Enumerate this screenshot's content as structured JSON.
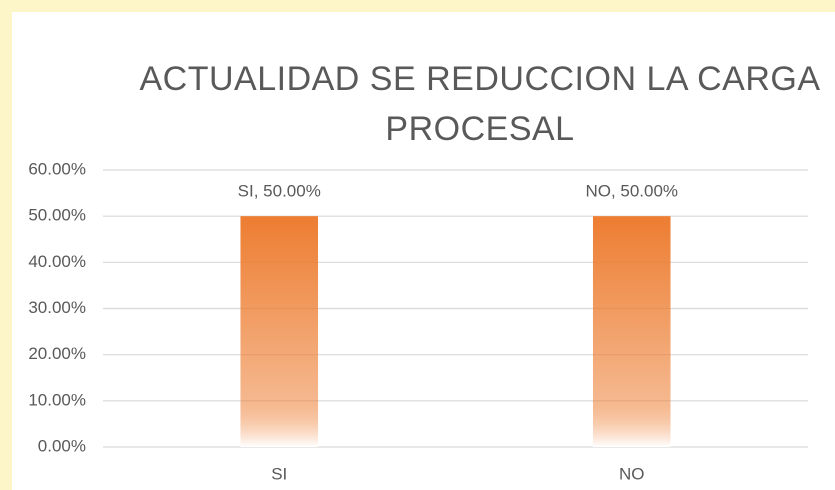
{
  "chart_data": {
    "type": "bar",
    "title": "ACTUALIDAD SE REDUCCION LA CARGA PROCESAL",
    "categories": [
      "SI",
      "NO"
    ],
    "values": [
      50,
      50
    ],
    "value_labels": [
      "SI, 50.00%",
      "NO, 50.00%"
    ],
    "color": "#ed7d31",
    "ylim": [
      0,
      60
    ],
    "yticks": [
      {
        "value": 0,
        "label": "0.00%"
      },
      {
        "value": 10,
        "label": "10.00%"
      },
      {
        "value": 20,
        "label": "20.00%"
      },
      {
        "value": 30,
        "label": "30.00%"
      },
      {
        "value": 40,
        "label": "40.00%"
      },
      {
        "value": 50,
        "label": "50.00%"
      },
      {
        "value": 60,
        "label": "60.00%"
      }
    ],
    "grid": true
  }
}
